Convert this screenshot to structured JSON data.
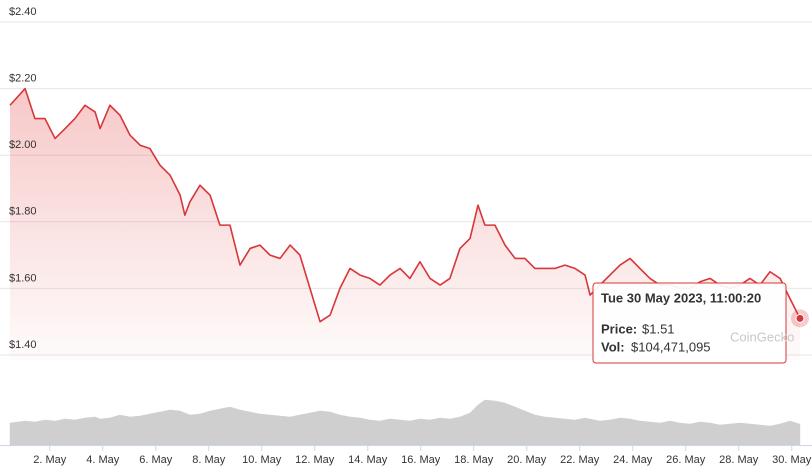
{
  "chart_data": {
    "type": "line",
    "color": "#d7363a",
    "volume_color": "#cfcfcf",
    "grid": true,
    "ylim": [
      1.4,
      2.4
    ],
    "yticks": [
      {
        "value": 2.4,
        "label": "$2.40"
      },
      {
        "value": 2.2,
        "label": "$2.20"
      },
      {
        "value": 2.0,
        "label": "$2.00"
      },
      {
        "value": 1.8,
        "label": "$1.80"
      },
      {
        "value": 1.6,
        "label": "$1.60"
      },
      {
        "value": 1.4,
        "label": "$1.40"
      }
    ],
    "xlim": [
      0.5,
      30.5
    ],
    "xticks": [
      {
        "value": 2,
        "label": "2. May"
      },
      {
        "value": 4,
        "label": "4. May"
      },
      {
        "value": 6,
        "label": "6. May"
      },
      {
        "value": 8,
        "label": "8. May"
      },
      {
        "value": 10,
        "label": "10. May"
      },
      {
        "value": 12,
        "label": "12. May"
      },
      {
        "value": 14,
        "label": "14. May"
      },
      {
        "value": 16,
        "label": "16. May"
      },
      {
        "value": 18,
        "label": "18. May"
      },
      {
        "value": 20,
        "label": "20. May"
      },
      {
        "value": 22,
        "label": "22. May"
      },
      {
        "value": 24,
        "label": "24. May"
      },
      {
        "value": 26,
        "label": "26. May"
      },
      {
        "value": 28,
        "label": "28. May"
      },
      {
        "value": 30,
        "label": "30. May"
      }
    ],
    "volume_ylim": [
      0,
      500000000
    ],
    "x": [
      0.5,
      1.07,
      1.44,
      1.82,
      2.2,
      2.58,
      2.95,
      3.33,
      3.71,
      3.9,
      4.27,
      4.65,
      5.03,
      5.41,
      5.78,
      6.16,
      6.54,
      6.92,
      7.1,
      7.29,
      7.67,
      8.05,
      8.42,
      8.8,
      9.18,
      9.56,
      9.93,
      10.31,
      10.69,
      11.07,
      11.44,
      11.82,
      12.2,
      12.58,
      12.95,
      13.33,
      13.71,
      14.08,
      14.46,
      14.84,
      15.22,
      15.59,
      15.97,
      16.35,
      16.73,
      17.1,
      17.48,
      17.86,
      18.16,
      18.42,
      18.8,
      19.18,
      19.56,
      19.93,
      20.31,
      20.69,
      21.07,
      21.44,
      21.82,
      22.2,
      22.39,
      22.76,
      23.14,
      23.52,
      23.9,
      24.27,
      24.65,
      25.03,
      25.41,
      25.78,
      26.16,
      26.54,
      26.92,
      27.29,
      27.67,
      28.05,
      28.42,
      28.8,
      29.18,
      29.56,
      29.93,
      30.31
    ],
    "series": [
      {
        "name": "Price",
        "values": [
          2.15,
          2.2,
          2.11,
          2.11,
          2.05,
          2.08,
          2.11,
          2.15,
          2.13,
          2.08,
          2.15,
          2.12,
          2.06,
          2.03,
          2.02,
          1.97,
          1.94,
          1.88,
          1.82,
          1.86,
          1.91,
          1.88,
          1.79,
          1.79,
          1.67,
          1.72,
          1.73,
          1.7,
          1.69,
          1.73,
          1.7,
          1.6,
          1.5,
          1.52,
          1.6,
          1.66,
          1.64,
          1.63,
          1.61,
          1.64,
          1.66,
          1.63,
          1.68,
          1.63,
          1.61,
          1.63,
          1.72,
          1.75,
          1.85,
          1.79,
          1.79,
          1.73,
          1.69,
          1.69,
          1.66,
          1.66,
          1.66,
          1.67,
          1.66,
          1.64,
          1.58,
          1.61,
          1.64,
          1.67,
          1.69,
          1.66,
          1.63,
          1.61,
          1.61,
          1.6,
          1.6,
          1.62,
          1.63,
          1.61,
          1.6,
          1.61,
          1.63,
          1.61,
          1.65,
          1.63,
          1.57,
          1.51
        ]
      },
      {
        "name": "Vol",
        "values": [
          110000000,
          120000000,
          115000000,
          125000000,
          120000000,
          130000000,
          125000000,
          135000000,
          140000000,
          130000000,
          135000000,
          150000000,
          140000000,
          145000000,
          155000000,
          165000000,
          175000000,
          170000000,
          160000000,
          150000000,
          155000000,
          170000000,
          180000000,
          190000000,
          175000000,
          165000000,
          155000000,
          150000000,
          145000000,
          140000000,
          150000000,
          160000000,
          170000000,
          165000000,
          150000000,
          140000000,
          135000000,
          125000000,
          120000000,
          130000000,
          125000000,
          120000000,
          130000000,
          125000000,
          135000000,
          130000000,
          140000000,
          160000000,
          200000000,
          225000000,
          220000000,
          210000000,
          190000000,
          170000000,
          150000000,
          140000000,
          135000000,
          130000000,
          125000000,
          135000000,
          130000000,
          120000000,
          125000000,
          135000000,
          130000000,
          120000000,
          115000000,
          110000000,
          120000000,
          110000000,
          105000000,
          115000000,
          110000000,
          100000000,
          105000000,
          110000000,
          105000000,
          100000000,
          95000000,
          105000000,
          120000000,
          104471095
        ]
      }
    ],
    "tooltip": {
      "title": "Tue 30 May 2023, 11:00:20",
      "rows": [
        {
          "label": "Price:",
          "value": "$1.51"
        },
        {
          "label": "Vol:",
          "value": "$104,471,095"
        }
      ]
    },
    "watermark": "CoinGecko"
  }
}
